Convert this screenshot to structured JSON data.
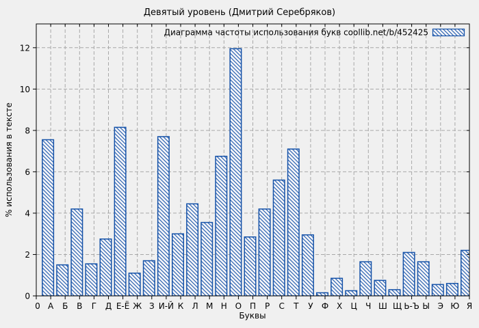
{
  "chart_data": {
    "type": "bar",
    "title": "Девятый уровень (Дмитрий Серебряков)",
    "legend_label": "Диаграмма частоты использования букв  coollib.net/b/452425",
    "legend_position": "top-right",
    "xlabel": "Буквы",
    "ylabel": "% использования в тексте",
    "x_origin_label": "0",
    "categories": [
      "А",
      "Б",
      "В",
      "Г",
      "Д",
      "Е-Ё",
      "Ж",
      "З",
      "И-Й",
      "К",
      "Л",
      "М",
      "Н",
      "О",
      "П",
      "Р",
      "С",
      "Т",
      "У",
      "Ф",
      "Х",
      "Ц",
      "Ч",
      "Ш",
      "Щ",
      "Ь-Ъ",
      "Ы",
      "Э",
      "Ю",
      "Я"
    ],
    "values": [
      7.55,
      1.5,
      4.2,
      1.55,
      2.75,
      8.15,
      1.1,
      1.7,
      7.7,
      3.0,
      4.45,
      3.55,
      6.75,
      11.95,
      2.85,
      4.2,
      5.6,
      7.1,
      2.95,
      0.15,
      0.85,
      0.25,
      1.65,
      0.75,
      0.3,
      2.1,
      1.65,
      0.55,
      0.6,
      2.2
    ],
    "yticks": [
      0,
      2,
      4,
      6,
      8,
      10,
      12
    ],
    "ylim": [
      0,
      13.15
    ],
    "grid": true,
    "bar_style": "diagonal-hatch",
    "colors": {
      "bar_outline": "#1552a8",
      "bar_fill_bg": "#f2f3f8",
      "grid": "#a8a8a8",
      "background": "#f0f0f0",
      "text": "#000000",
      "border": "#000000"
    }
  }
}
